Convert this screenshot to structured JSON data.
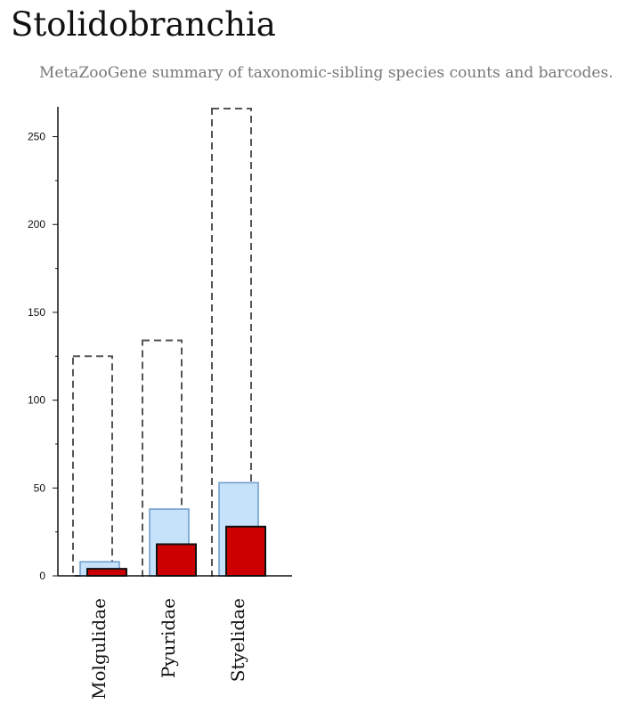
{
  "title": "Stolidobranchia",
  "subtitle": "MetaZooGene summary of taxonomic-sibling species counts and barcodes.",
  "chart_data": {
    "type": "bar",
    "categories": [
      "Molgulidae",
      "Pyuridae",
      "Styelidae"
    ],
    "series": [
      {
        "values": [
          125,
          134,
          266
        ],
        "style": "dashed-outline",
        "color": "#555555"
      },
      {
        "values": [
          8,
          38,
          53
        ],
        "style": "filled",
        "color": "#c6e2fa",
        "stroke": "#6a9acb"
      },
      {
        "values": [
          4,
          18,
          28
        ],
        "style": "filled",
        "color": "#cc0000",
        "stroke": "#111111"
      }
    ],
    "ylim": [
      0,
      267
    ],
    "yticks": [
      0,
      50,
      100,
      150,
      200,
      250
    ],
    "grid": false,
    "legend": false
  }
}
